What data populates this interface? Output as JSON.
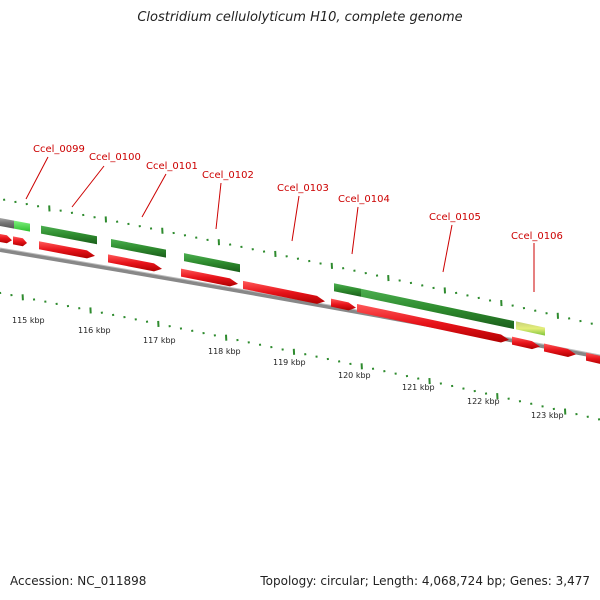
{
  "title": "Clostridium cellulolyticum H10, complete genome",
  "footer": {
    "accession": "Accession: NC_011898",
    "summary": "Topology: circular; Length: 4,068,724 bp; Genes: 3,477"
  },
  "colors": {
    "gene_arrow": "#e8141b",
    "cds_bar": "#2e8b2e",
    "cds_bar_light": "#3fd13f",
    "cds_bar_yellow": "#c9e06a",
    "backbone": "#888888",
    "tick": "#2e8b2e",
    "label": "#cc0000"
  },
  "gene_labels": [
    "Ccel_0099",
    "Ccel_0100",
    "Ccel_0101",
    "Ccel_0102",
    "Ccel_0103",
    "Ccel_0104",
    "Ccel_0105",
    "Ccel_0106"
  ],
  "scale_labels": [
    "115 kbp",
    "116 kbp",
    "117 kbp",
    "118 kbp",
    "119 kbp",
    "120 kbp",
    "121 kbp",
    "122 kbp",
    "123 kbp"
  ]
}
